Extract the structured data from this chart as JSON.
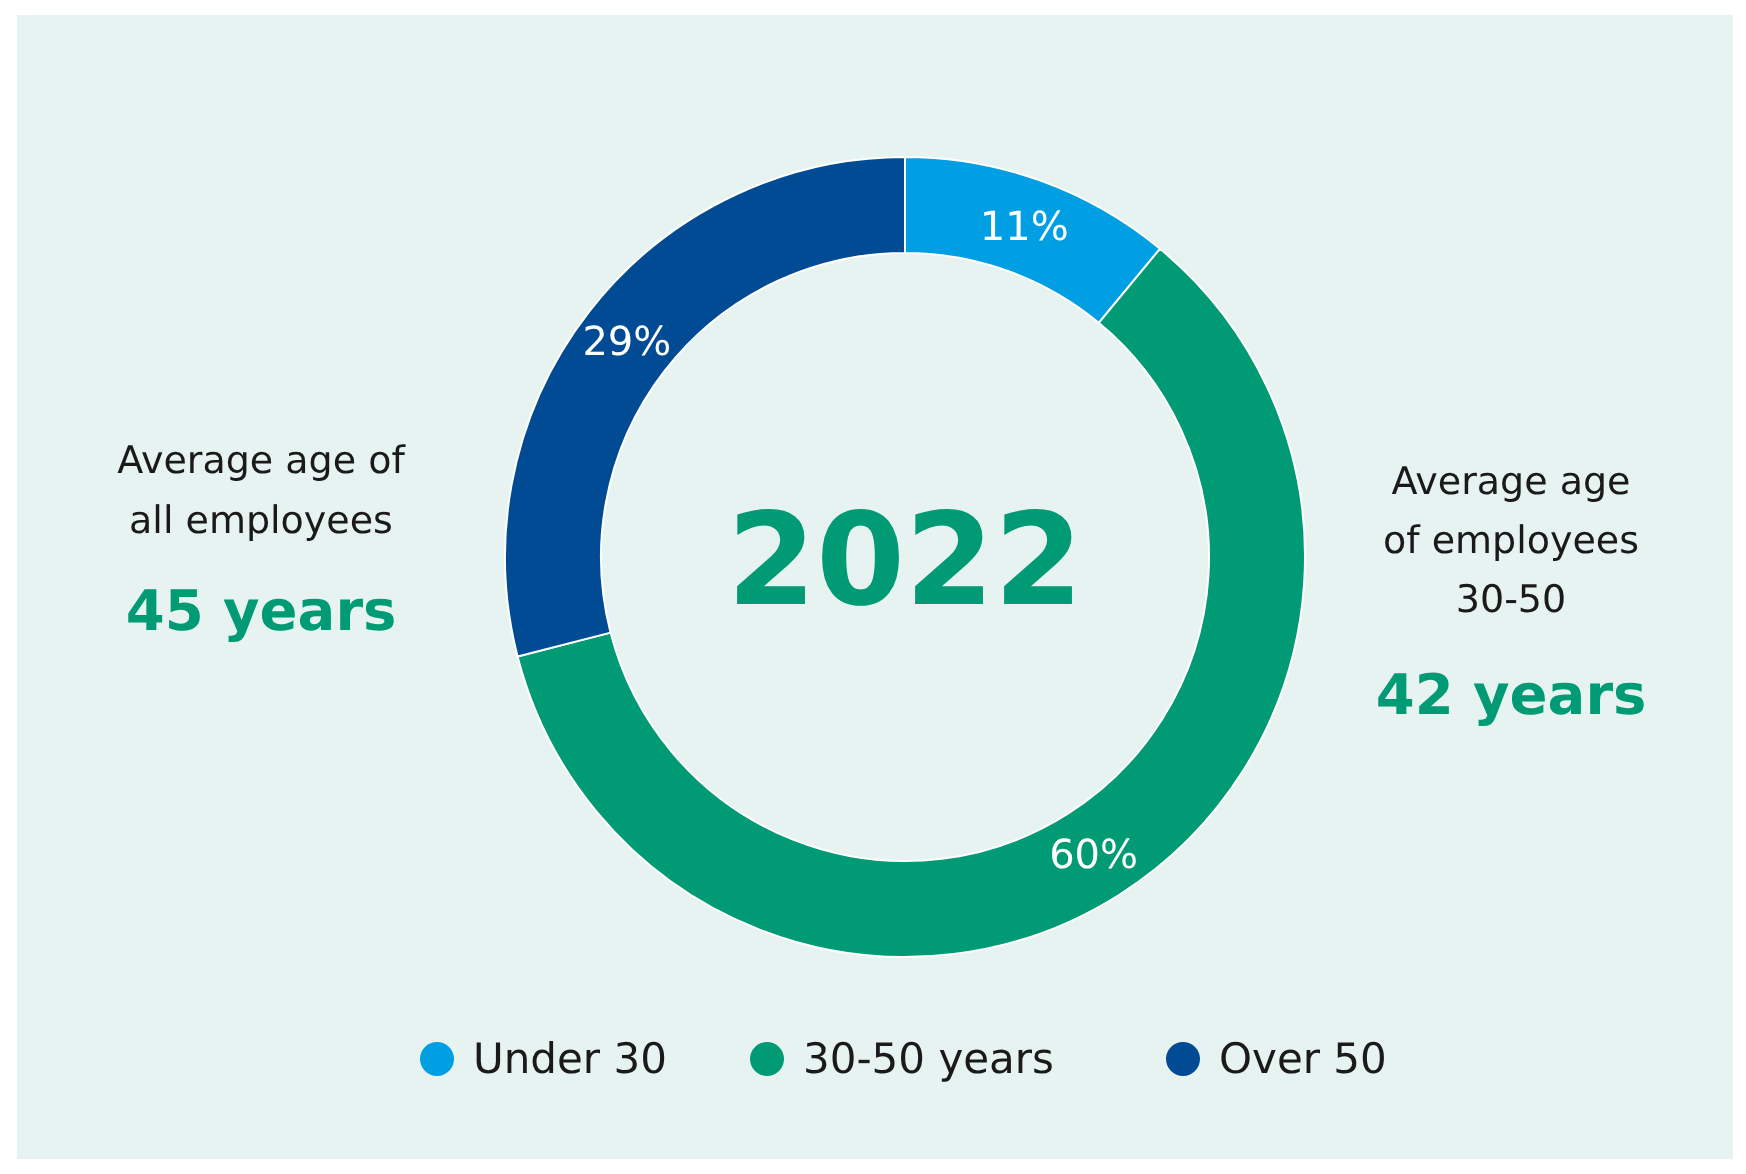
{
  "chart_data": {
    "type": "donut",
    "title": "2022",
    "categories": [
      "Under 30",
      "30-50 years",
      "Over 50"
    ],
    "values": [
      11,
      60,
      29
    ],
    "colors": [
      "#009fe3",
      "#009a74",
      "#004b93"
    ],
    "value_labels": [
      "11%",
      "60%",
      "29%"
    ],
    "legend": "bottom",
    "annotations": [
      "Average age of\nall employees",
      "45 years",
      "Average age\nof employees\n30-50",
      "42 years"
    ]
  }
}
